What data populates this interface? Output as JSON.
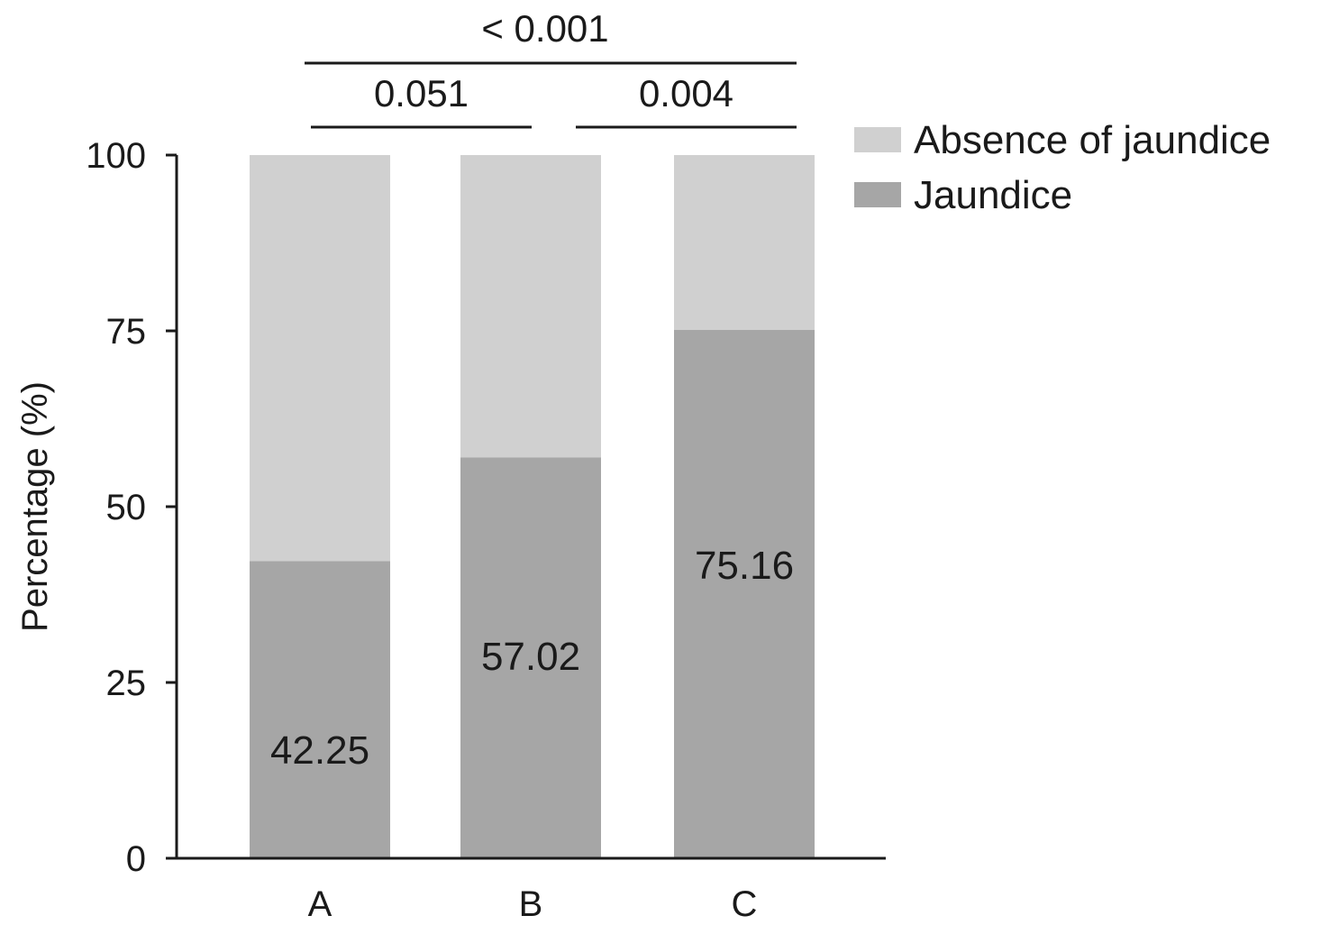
{
  "chart_data": {
    "type": "bar",
    "stacked": true,
    "categories": [
      "A",
      "B",
      "C"
    ],
    "series": [
      {
        "name": "Jaundice",
        "values": [
          42.25,
          57.02,
          75.16
        ],
        "color": "#a6a6a6"
      },
      {
        "name": "Absence of jaundice",
        "values": [
          57.75,
          42.98,
          24.84
        ],
        "color": "#d0d0d0"
      }
    ],
    "data_labels": [
      "42.25",
      "57.02",
      "75.16"
    ],
    "ylabel": "Percentage (%)",
    "xlabel": "",
    "ylim": [
      0,
      100
    ],
    "yticks": [
      0,
      25,
      50,
      75,
      100
    ],
    "grid": false,
    "legend_position": "top-right",
    "significance": [
      {
        "from": "A",
        "to": "B",
        "label": "0.051"
      },
      {
        "from": "B",
        "to": "C",
        "label": "0.004"
      },
      {
        "from": "A",
        "to": "C",
        "label": "< 0.001"
      }
    ]
  }
}
